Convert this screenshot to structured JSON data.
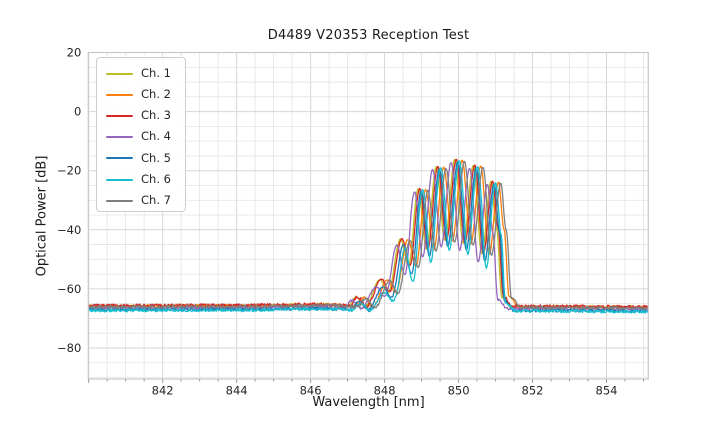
{
  "chart_data": {
    "type": "line",
    "title": "D4489 V20353 Reception Test",
    "xlabel": "Wavelength [nm]",
    "ylabel": "Optical Power [dB]",
    "xlim": [
      839.99,
      855.13
    ],
    "ylim": [
      -90.5,
      20
    ],
    "xticks": [
      842,
      844,
      846,
      848,
      850,
      852,
      854
    ],
    "xtick_labels": [
      "842",
      "844",
      "846",
      "848",
      "850",
      "852",
      "854"
    ],
    "yticks": [
      20,
      0,
      -20,
      -40,
      -60,
      -80
    ],
    "ytick_labels": [
      "20",
      "0",
      "−20",
      "−40",
      "−60",
      "−80"
    ],
    "minor_x_step": 0.5,
    "minor_y_step": 5,
    "grid": true,
    "legend_position": "upper-left",
    "noise_floor_db": -66,
    "signal_band_nm": [
      847.0,
      851.4
    ],
    "peak_db": -16.5,
    "envelope_points": [
      [
        839.5,
        -66.1
      ],
      [
        844.0,
        -66.0
      ],
      [
        846.3,
        -65.6
      ],
      [
        847.08,
        -66.0
      ],
      [
        847.3,
        -63.2
      ],
      [
        847.55,
        -66.2
      ],
      [
        847.95,
        -57.2
      ],
      [
        848.17,
        -61.5
      ],
      [
        848.5,
        -43.5
      ],
      [
        848.72,
        -52.5
      ],
      [
        848.98,
        -26.5
      ],
      [
        849.2,
        -47.0
      ],
      [
        849.47,
        -19.0
      ],
      [
        849.7,
        -44.0
      ],
      [
        849.97,
        -16.6
      ],
      [
        850.2,
        -45.0
      ],
      [
        850.47,
        -18.6
      ],
      [
        850.7,
        -48.5
      ],
      [
        850.95,
        -24.0
      ],
      [
        851.1,
        -40.0
      ],
      [
        851.24,
        -63.0
      ],
      [
        851.5,
        -66.3
      ],
      [
        855.6,
        -66.5
      ]
    ],
    "series": [
      {
        "name": "Ch. 1",
        "color": "#bcbd22",
        "offset_nm": -0.07,
        "floor_db": -65.7,
        "peak_delta_db": 0.4,
        "notch_delta_db": 0
      },
      {
        "name": "Ch. 2",
        "color": "#ff7f0e",
        "offset_nm": 0.13,
        "floor_db": -65.8,
        "peak_delta_db": 0.2,
        "notch_delta_db": 0
      },
      {
        "name": "Ch. 3",
        "color": "#d62728",
        "offset_nm": -0.03,
        "floor_db": -65.6,
        "peak_delta_db": 0.5,
        "notch_delta_db": 0
      },
      {
        "name": "Ch. 4",
        "color": "#9467bd",
        "offset_nm": -0.17,
        "floor_db": -66.4,
        "peak_delta_db": -0.6,
        "notch_delta_db": -2
      },
      {
        "name": "Ch. 5",
        "color": "#1f77b4",
        "offset_nm": 0.01,
        "floor_db": -67.0,
        "peak_delta_db": -0.4,
        "notch_delta_db": -2
      },
      {
        "name": "Ch. 6",
        "color": "#17becf",
        "offset_nm": 0.05,
        "floor_db": -67.2,
        "peak_delta_db": 0.0,
        "notch_delta_db": -5
      },
      {
        "name": "Ch. 7",
        "color": "#7f7f7f",
        "offset_nm": 0.19,
        "floor_db": -66.0,
        "peak_delta_db": -0.2,
        "notch_delta_db": 0
      }
    ]
  },
  "colors": {
    "grid_major": "#d6d6d6",
    "grid_minor": "#e3e3e3",
    "spine": "#c8c8c8",
    "tick": "#9c9c9c",
    "text": "#262626"
  }
}
